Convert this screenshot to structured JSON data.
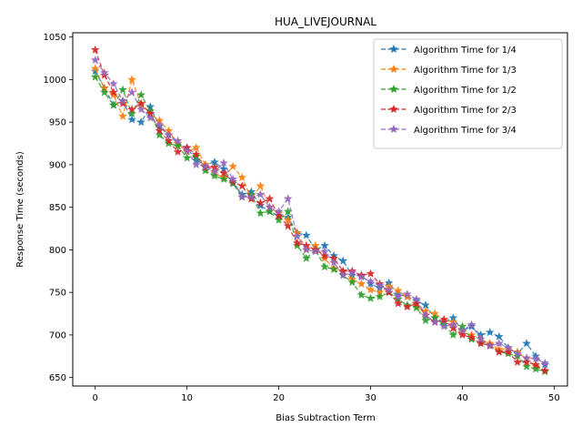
{
  "chart_data": {
    "type": "line",
    "title": "HUA_LIVEJOURNAL",
    "xlabel": "Bias Subtraction Term",
    "ylabel": "Response Time (seconds)",
    "xlim": [
      -2.45,
      51.45
    ],
    "ylim": [
      640,
      1055
    ],
    "xticks": [
      0,
      10,
      20,
      30,
      40,
      50
    ],
    "yticks": [
      650,
      700,
      750,
      800,
      850,
      900,
      950,
      1000,
      1050
    ],
    "legend_position": "top-right",
    "grid": false,
    "x": [
      0,
      1,
      2,
      3,
      4,
      5,
      6,
      7,
      8,
      9,
      10,
      11,
      12,
      13,
      14,
      15,
      16,
      17,
      18,
      19,
      20,
      21,
      22,
      23,
      24,
      25,
      26,
      27,
      28,
      29,
      30,
      31,
      32,
      33,
      34,
      35,
      36,
      37,
      38,
      39,
      40,
      41,
      42,
      43,
      44,
      45,
      46,
      47,
      48,
      49
    ],
    "series": [
      {
        "name": "Algorithm Time for 1/4",
        "color": "#1f77b4",
        "values": [
          1010,
          990,
          970,
          975,
          953,
          950,
          968,
          945,
          935,
          925,
          920,
          905,
          900,
          903,
          895,
          878,
          865,
          868,
          852,
          845,
          840,
          838,
          820,
          817,
          800,
          805,
          793,
          787,
          770,
          770,
          760,
          755,
          761,
          748,
          745,
          740,
          735,
          720,
          715,
          720,
          705,
          710,
          700,
          703,
          698,
          685,
          678,
          690,
          675,
          665
        ]
      },
      {
        "name": "Algorithm Time for 1/3",
        "color": "#ff7f0e",
        "values": [
          1013,
          990,
          982,
          957,
          1000,
          970,
          960,
          952,
          940,
          925,
          915,
          920,
          900,
          890,
          885,
          898,
          885,
          860,
          875,
          850,
          843,
          835,
          820,
          800,
          805,
          790,
          778,
          775,
          765,
          760,
          753,
          750,
          757,
          752,
          745,
          733,
          728,
          725,
          718,
          715,
          703,
          700,
          695,
          690,
          683,
          683,
          680,
          672,
          663,
          658
        ]
      },
      {
        "name": "Algorithm Time for 1/2",
        "color": "#2ca02c",
        "values": [
          1003,
          985,
          970,
          988,
          960,
          982,
          963,
          935,
          925,
          922,
          908,
          910,
          893,
          887,
          883,
          878,
          862,
          865,
          843,
          845,
          835,
          845,
          805,
          790,
          800,
          780,
          777,
          770,
          762,
          747,
          743,
          745,
          750,
          742,
          735,
          732,
          717,
          720,
          712,
          700,
          710,
          695,
          690,
          688,
          680,
          678,
          675,
          663,
          660,
          657
        ]
      },
      {
        "name": "Algorithm Time for 2/3",
        "color": "#d62728",
        "values": [
          1035,
          1005,
          985,
          972,
          965,
          972,
          960,
          940,
          928,
          915,
          920,
          912,
          897,
          897,
          890,
          880,
          875,
          860,
          855,
          860,
          840,
          828,
          808,
          805,
          800,
          793,
          790,
          775,
          775,
          770,
          772,
          760,
          750,
          737,
          733,
          737,
          723,
          715,
          718,
          708,
          700,
          697,
          690,
          688,
          680,
          680,
          668,
          668,
          665,
          658
        ]
      },
      {
        "name": "Algorithm Time for 3/4",
        "color": "#9467bd",
        "values": [
          1023,
          1008,
          995,
          975,
          985,
          965,
          955,
          947,
          935,
          928,
          916,
          900,
          898,
          892,
          902,
          883,
          862,
          862,
          865,
          850,
          845,
          860,
          816,
          800,
          798,
          798,
          785,
          770,
          773,
          768,
          763,
          758,
          753,
          745,
          748,
          742,
          723,
          715,
          710,
          712,
          705,
          712,
          695,
          687,
          690,
          685,
          678,
          673,
          672,
          667
        ]
      }
    ]
  }
}
